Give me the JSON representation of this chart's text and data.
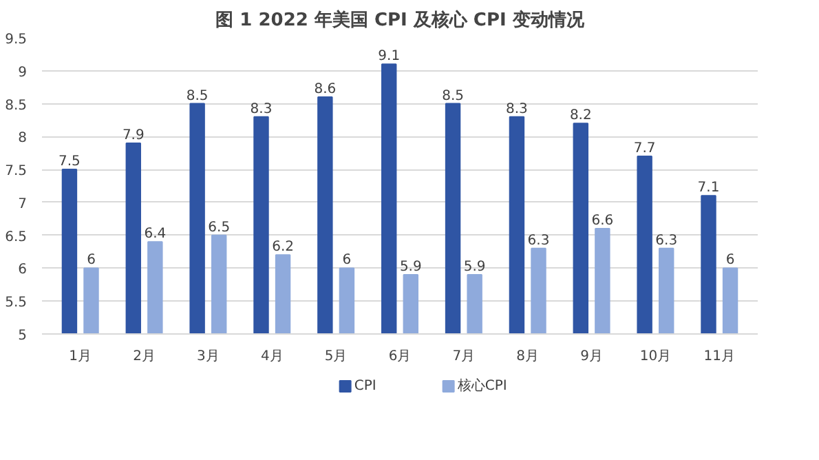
{
  "chart_data": {
    "type": "bar",
    "title": "图 1 2022 年美国 CPI 及核心 CPI 变动情况",
    "categories": [
      "1月",
      "2月",
      "3月",
      "4月",
      "5月",
      "6月",
      "7月",
      "8月",
      "9月",
      "10月",
      "11月"
    ],
    "series": [
      {
        "name": "CPI",
        "color": "#2f55a4",
        "values": [
          7.5,
          7.9,
          8.5,
          8.3,
          8.6,
          9.1,
          8.5,
          8.3,
          8.2,
          7.7,
          7.1
        ]
      },
      {
        "name": "核心CPI",
        "color": "#8faadc",
        "values": [
          6,
          6.4,
          6.5,
          6.2,
          6,
          5.9,
          5.9,
          6.3,
          6.6,
          6.3,
          6
        ]
      }
    ],
    "ylim": [
      5,
      9.5
    ],
    "yticks": [
      5,
      5.5,
      6,
      6.5,
      7,
      7.5,
      8,
      8.5,
      9,
      9.5
    ],
    "grid": "y",
    "legend": "bottom",
    "data_labels": true
  }
}
